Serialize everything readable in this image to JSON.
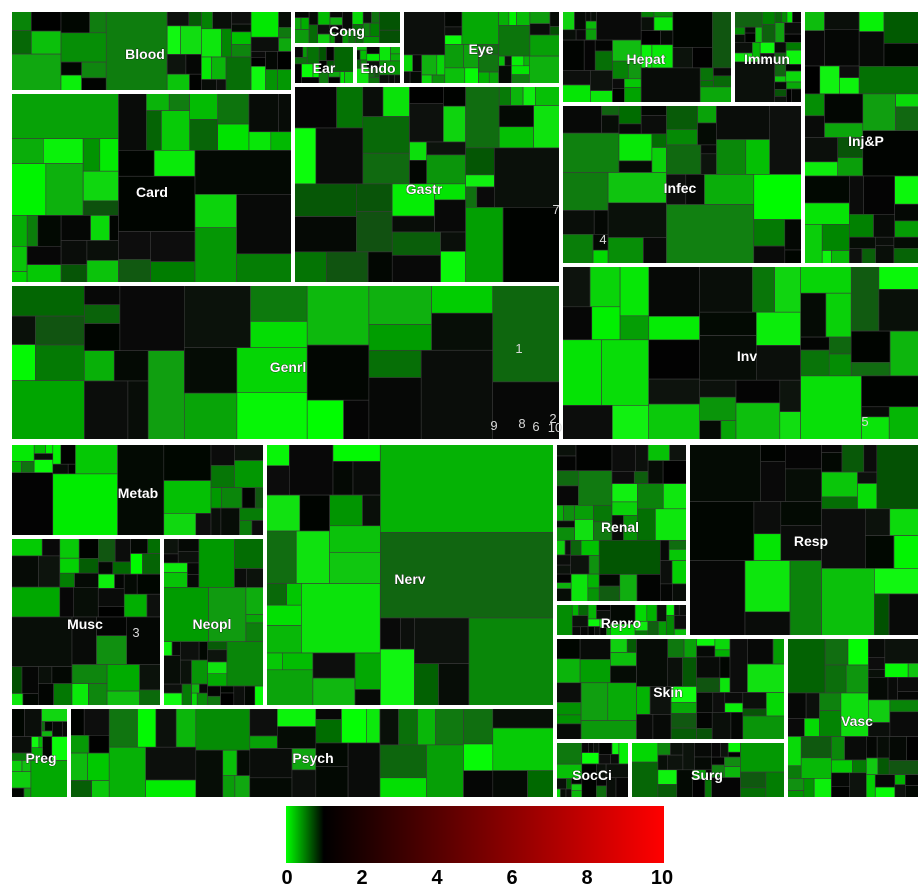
{
  "chart_data": {
    "type": "treemap",
    "title": "",
    "color_scale": {
      "min": 0,
      "max": 10,
      "ticks": [
        "0",
        "2",
        "4",
        "6",
        "8",
        "10"
      ],
      "stops": [
        "#00ff00",
        "#000000",
        "#ff0000"
      ]
    },
    "categories": [
      "Blood",
      "Cong",
      "Ear",
      "Endo",
      "Eye",
      "Hepat",
      "Immun",
      "Inj&P",
      "Card",
      "Gastr",
      "Infec",
      "Genrl",
      "Inv",
      "Metab",
      "Nerv",
      "Renal",
      "Resp",
      "Musc",
      "Neopl",
      "Repro",
      "Skin",
      "Vasc",
      "Preg",
      "Psych",
      "SocCi",
      "Surg"
    ],
    "markers": [
      "1",
      "2",
      "3",
      "4",
      "5",
      "6",
      "7",
      "8",
      "9",
      "10"
    ]
  }
}
